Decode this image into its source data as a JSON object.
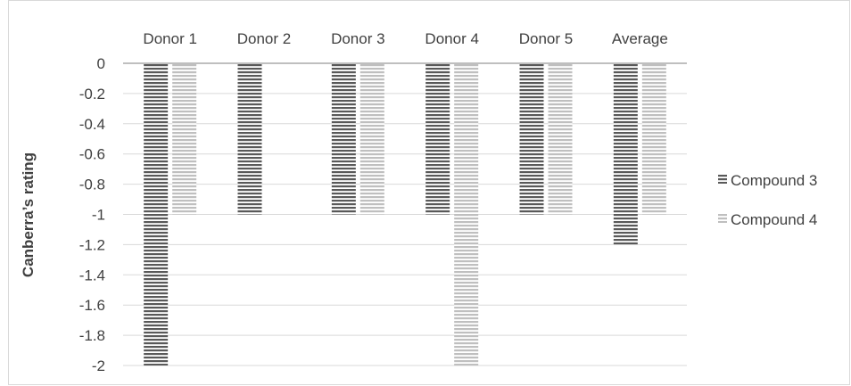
{
  "chart_data": {
    "type": "bar",
    "title": "",
    "xlabel": "",
    "ylabel": "Canberra’s rating",
    "categories": [
      "Donor 1",
      "Donor 2",
      "Donor 3",
      "Donor 4",
      "Donor 5",
      "Average"
    ],
    "series": [
      {
        "name": "Compound 3",
        "values": [
          -2,
          -1,
          -1,
          -1,
          -1,
          -1.2
        ],
        "color": "#595959"
      },
      {
        "name": "Compound 4",
        "values": [
          -1,
          null,
          -1,
          -2,
          -1,
          -1
        ],
        "color": "#bfbfbf"
      }
    ],
    "ylim": [
      -2,
      0
    ],
    "yticks": [
      0,
      -0.2,
      -0.4,
      -0.6,
      -0.8,
      -1,
      -1.2,
      -1.4,
      -1.6,
      -1.8,
      -2
    ],
    "ytick_labels": [
      "0",
      "-0.2",
      "-0.4",
      "-0.6",
      "-0.8",
      "-1",
      "-1.2",
      "-1.4",
      "-1.6",
      "-1.8",
      "-2"
    ],
    "grid": true,
    "legend_position": "right",
    "category_axis_position": "top",
    "bar_fill_pattern": "horizontal-stripes"
  }
}
